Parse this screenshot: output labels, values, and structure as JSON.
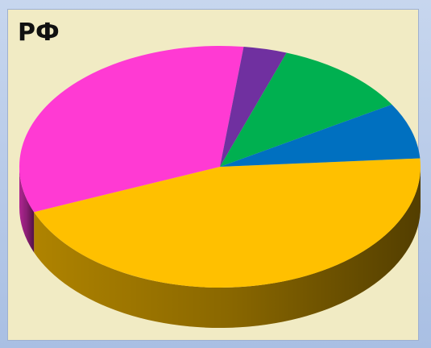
{
  "chart_data": {
    "type": "pie",
    "title": "РФ",
    "style": "3d",
    "values": [
      45,
      33,
      3.5,
      11,
      7.5
    ],
    "colors": [
      "#ffc000",
      "#ff3ad3",
      "#7030a0",
      "#00b050",
      "#0070c0"
    ],
    "side_colors": [
      "#b88a00",
      "#b8289a",
      "#4f2070",
      "#007a38",
      "#00508a"
    ]
  }
}
